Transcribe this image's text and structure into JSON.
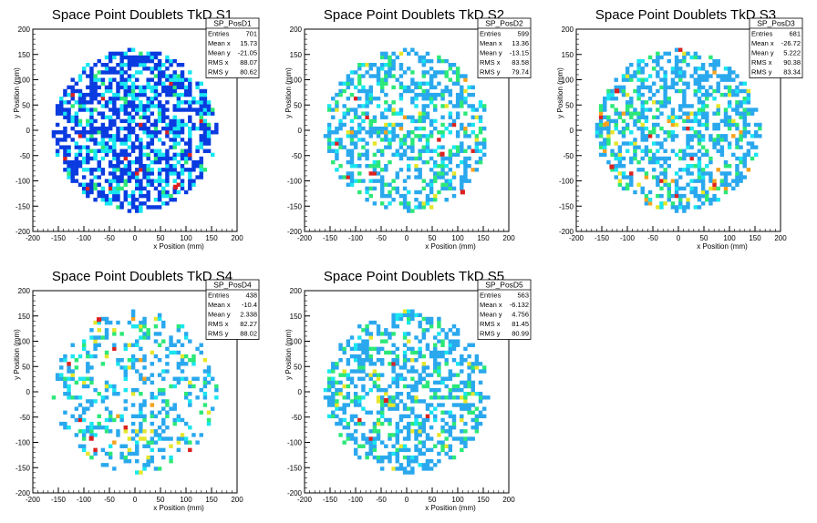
{
  "palette": [
    "#0a3be0",
    "#19e6f0",
    "#2aa8ee",
    "#2ce878",
    "#e6e62a",
    "#f5a21e",
    "#dc2020"
  ],
  "chart_data": [
    {
      "type": "heatmap",
      "title": "Space Point Doublets TkD S1",
      "xlabel": "x Position (mm)",
      "ylabel": "y Position (mm)",
      "xlim": [
        -200,
        200
      ],
      "ylim": [
        -200,
        200
      ],
      "xticks": [
        -200,
        -150,
        -100,
        -50,
        0,
        50,
        100,
        150,
        200
      ],
      "yticks": [
        -200,
        -150,
        -100,
        -50,
        0,
        50,
        100,
        150,
        200
      ],
      "bins": 54,
      "stats": {
        "name": "SP_PosD1",
        "rows": [
          {
            "label": "Entries",
            "value": "701"
          },
          {
            "label": "Mean x",
            "value": "15.73"
          },
          {
            "label": "Mean y",
            "value": "-21.05"
          },
          {
            "label": "RMS x",
            "value": "88.07"
          },
          {
            "label": "RMS y",
            "value": "80.62"
          }
        ]
      },
      "level_weights": [
        0.66,
        0.28,
        0.0,
        0.05,
        0.0,
        0.0,
        0.01
      ],
      "fill_fraction": 0.62,
      "seed": 11,
      "hot_cells": [
        {
          "x": 75,
          "y": -115,
          "level": 6
        }
      ]
    },
    {
      "type": "heatmap",
      "title": "Space Point Doublets TkD S2",
      "xlabel": "x Position (mm)",
      "ylabel": "y Position (mm)",
      "xlim": [
        -200,
        200
      ],
      "ylim": [
        -200,
        200
      ],
      "xticks": [
        -200,
        -150,
        -100,
        -50,
        0,
        50,
        100,
        150,
        200
      ],
      "yticks": [
        -200,
        -150,
        -100,
        -50,
        0,
        50,
        100,
        150,
        200
      ],
      "bins": 54,
      "stats": {
        "name": "SP_PosD2",
        "rows": [
          {
            "label": "Entries",
            "value": "599"
          },
          {
            "label": "Mean x",
            "value": "13.36"
          },
          {
            "label": "Mean y",
            "value": "-13.15"
          },
          {
            "label": "RMS x",
            "value": "83.58"
          },
          {
            "label": "RMS y",
            "value": "79.74"
          }
        ]
      },
      "level_weights": [
        0.0,
        0.12,
        0.62,
        0.2,
        0.04,
        0.01,
        0.01
      ],
      "fill_fraction": 0.45,
      "seed": 23,
      "hot_cells": [
        {
          "x": 65,
          "y": -50,
          "level": 6
        },
        {
          "x": 105,
          "y": -125,
          "level": 6
        }
      ]
    },
    {
      "type": "heatmap",
      "title": "Space Point Doublets TkD S3",
      "xlabel": "x Position (mm)",
      "ylabel": "y Position (mm)",
      "xlim": [
        -200,
        200
      ],
      "ylim": [
        -200,
        200
      ],
      "xticks": [
        -200,
        -150,
        -100,
        -50,
        0,
        50,
        100,
        150,
        200
      ],
      "yticks": [
        -200,
        -150,
        -100,
        -50,
        0,
        50,
        100,
        150,
        200
      ],
      "bins": 54,
      "stats": {
        "name": "SP_PosD3",
        "rows": [
          {
            "label": "Entries",
            "value": "681"
          },
          {
            "label": "Mean x",
            "value": "-26.72"
          },
          {
            "label": "Mean y",
            "value": "5.222"
          },
          {
            "label": "RMS x",
            "value": "90.38"
          },
          {
            "label": "RMS y",
            "value": "83.34"
          }
        ]
      },
      "level_weights": [
        0.0,
        0.1,
        0.64,
        0.18,
        0.04,
        0.03,
        0.01
      ],
      "fill_fraction": 0.47,
      "seed": 37,
      "hot_cells": [
        {
          "x": -125,
          "y": 75,
          "level": 6
        },
        {
          "x": -135,
          "y": -75,
          "level": 6
        },
        {
          "x": -145,
          "y": 10,
          "level": 5
        }
      ]
    },
    {
      "type": "heatmap",
      "title": "Space Point Doublets TkD S4",
      "xlabel": "x Position (mm)",
      "ylabel": "y Position (mm)",
      "xlim": [
        -200,
        200
      ],
      "ylim": [
        -200,
        200
      ],
      "xticks": [
        -200,
        -150,
        -100,
        -50,
        0,
        50,
        100,
        150,
        200
      ],
      "yticks": [
        -200,
        -150,
        -100,
        -50,
        0,
        50,
        100,
        150,
        200
      ],
      "bins": 54,
      "stats": {
        "name": "SP_PosD4",
        "rows": [
          {
            "label": "Entries",
            "value": "438"
          },
          {
            "label": "Mean x",
            "value": "-10.4"
          },
          {
            "label": "Mean y",
            "value": "2.338"
          },
          {
            "label": "RMS x",
            "value": "82.27"
          },
          {
            "label": "RMS y",
            "value": "88.02"
          }
        ]
      },
      "level_weights": [
        0.0,
        0.16,
        0.58,
        0.18,
        0.06,
        0.01,
        0.01
      ],
      "fill_fraction": 0.3,
      "seed": 51,
      "hot_cells": [
        {
          "x": -90,
          "y": -95,
          "level": 6
        },
        {
          "x": -75,
          "y": 140,
          "level": 6
        }
      ]
    },
    {
      "type": "heatmap",
      "title": "Space Point Doublets TkD S5",
      "xlabel": "x Position (mm)",
      "ylabel": "y Position (mm)",
      "xlim": [
        -200,
        200
      ],
      "ylim": [
        -200,
        200
      ],
      "xticks": [
        -200,
        -150,
        -100,
        -50,
        0,
        50,
        100,
        150,
        200
      ],
      "yticks": [
        -200,
        -150,
        -100,
        -50,
        0,
        50,
        100,
        150,
        200
      ],
      "bins": 54,
      "stats": {
        "name": "SP_PosD5",
        "rows": [
          {
            "label": "Entries",
            "value": "563"
          },
          {
            "label": "Mean x",
            "value": "-6.132"
          },
          {
            "label": "Mean y",
            "value": "4.756"
          },
          {
            "label": "RMS x",
            "value": "81.45"
          },
          {
            "label": "RMS y",
            "value": "80.99"
          }
        ]
      },
      "level_weights": [
        0.0,
        0.06,
        0.72,
        0.18,
        0.03,
        0.0,
        0.01
      ],
      "fill_fraction": 0.42,
      "seed": 67,
      "hot_cells": [
        {
          "x": -45,
          "y": -20,
          "level": 6
        }
      ]
    }
  ]
}
